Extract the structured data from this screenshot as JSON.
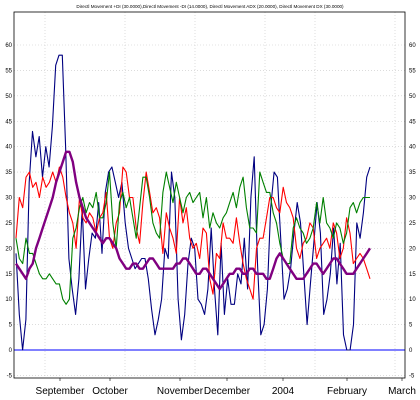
{
  "chart_data": {
    "type": "line",
    "title": "Directl Movement +DI (30.0000),Directl Movement -DI (14.0000), Directl Movement ADX (20.0000), Directl Movement DX (30.0000)",
    "xlabel": "",
    "ylabel": "",
    "ylim": [
      -5,
      65
    ],
    "y_ticks": [
      -5,
      0,
      5,
      10,
      15,
      20,
      25,
      30,
      35,
      40,
      45,
      50,
      55,
      60
    ],
    "grid": true,
    "legend": "none",
    "x_labels": [
      "September",
      "October",
      "November",
      "December",
      "2004",
      "February",
      "March"
    ],
    "reference_line": {
      "value": 0,
      "color": "#0000ff"
    },
    "series": [
      {
        "name": "",
        "color": "#000080",
        "values": [
          19,
          7,
          0,
          6,
          33,
          43,
          38,
          42,
          34,
          40,
          36,
          44,
          56,
          58,
          58,
          40,
          18,
          12,
          7,
          14,
          28,
          12,
          18,
          23,
          22,
          29,
          19,
          31,
          35,
          36,
          33,
          30,
          33,
          25,
          20,
          18,
          16,
          17,
          18,
          18,
          14,
          8,
          3,
          6,
          10,
          20,
          18,
          35,
          30,
          10,
          2,
          7,
          17,
          22,
          20,
          10,
          9,
          7,
          12,
          24,
          12,
          3,
          21,
          7,
          14,
          9,
          9,
          15,
          13,
          22,
          12,
          30,
          38,
          17,
          3,
          5,
          12,
          28,
          35,
          34,
          22,
          10,
          12,
          16,
          23,
          29,
          25,
          15,
          5,
          13,
          21,
          29,
          23,
          7,
          10,
          15,
          24,
          13,
          21,
          3,
          0,
          0,
          5,
          25,
          22,
          27,
          34,
          36
        ]
      },
      {
        "name": "",
        "color": "#ff0000",
        "values": [
          22,
          30,
          28,
          34,
          35,
          32,
          33,
          30,
          34,
          32,
          33,
          35,
          33,
          36,
          34,
          30,
          27,
          25,
          20,
          30,
          26,
          25,
          27,
          26,
          23,
          26,
          27,
          31,
          22,
          20,
          25,
          27,
          36,
          35,
          30,
          30,
          24,
          21,
          29,
          35,
          31,
          27,
          28,
          26,
          19,
          27,
          24,
          22,
          19,
          30,
          25,
          28,
          22,
          20,
          21,
          18,
          24,
          23,
          14,
          11,
          19,
          18,
          25,
          22,
          22,
          21,
          26,
          21,
          17,
          14,
          12,
          10,
          20,
          22,
          22,
          26,
          30,
          30,
          28,
          27,
          32,
          29,
          28,
          26,
          20,
          18,
          21,
          22,
          25,
          24,
          18,
          20,
          21,
          22,
          20,
          25,
          23,
          18,
          20,
          26,
          23,
          17,
          18,
          19,
          18,
          16,
          14
        ]
      },
      {
        "name": "",
        "color": "#008000",
        "values": [
          22,
          18,
          17,
          22,
          19,
          19,
          17,
          15,
          14,
          14,
          15,
          14,
          13,
          13,
          10,
          9,
          10,
          22,
          24,
          28,
          30,
          27,
          29,
          28,
          31,
          26,
          26,
          29,
          35,
          25,
          20,
          29,
          31,
          28,
          30,
          26,
          22,
          28,
          34,
          34,
          30,
          25,
          23,
          22,
          31,
          35,
          32,
          29,
          33,
          30,
          27,
          30,
          31,
          29,
          30,
          31,
          26,
          30,
          24,
          27,
          25,
          24,
          26,
          27,
          29,
          31,
          28,
          32,
          34,
          28,
          24,
          24,
          23,
          35,
          33,
          31,
          31,
          27,
          25,
          21,
          18,
          17,
          17,
          24,
          26,
          24,
          23,
          21,
          22,
          24,
          29,
          25,
          30,
          25,
          24,
          22,
          25,
          24,
          21,
          23,
          28,
          29,
          27,
          29,
          30,
          30,
          30
        ]
      },
      {
        "name": "",
        "color": "#800080",
        "values": [
          17,
          16,
          15,
          14,
          16,
          17,
          20,
          22,
          24,
          26,
          28,
          30,
          33,
          35,
          37,
          39,
          39,
          37,
          33,
          30,
          28,
          26,
          25,
          24,
          23,
          22,
          21,
          22,
          22,
          21,
          20,
          18,
          17,
          16,
          16,
          17,
          17,
          16,
          16,
          17,
          18,
          18,
          17,
          16,
          16,
          16,
          16,
          16,
          17,
          17,
          18,
          18,
          17,
          16,
          15,
          15,
          16,
          16,
          15,
          14,
          13,
          12,
          13,
          14,
          15,
          15,
          16,
          16,
          15,
          15,
          16,
          16,
          15,
          15,
          15,
          14,
          14,
          16,
          18,
          19,
          18,
          17,
          16,
          15,
          14,
          14,
          14,
          15,
          16,
          17,
          17,
          16,
          15,
          16,
          17,
          18,
          18,
          17,
          16,
          15,
          15,
          15,
          16,
          17,
          18,
          19,
          20
        ]
      }
    ]
  }
}
